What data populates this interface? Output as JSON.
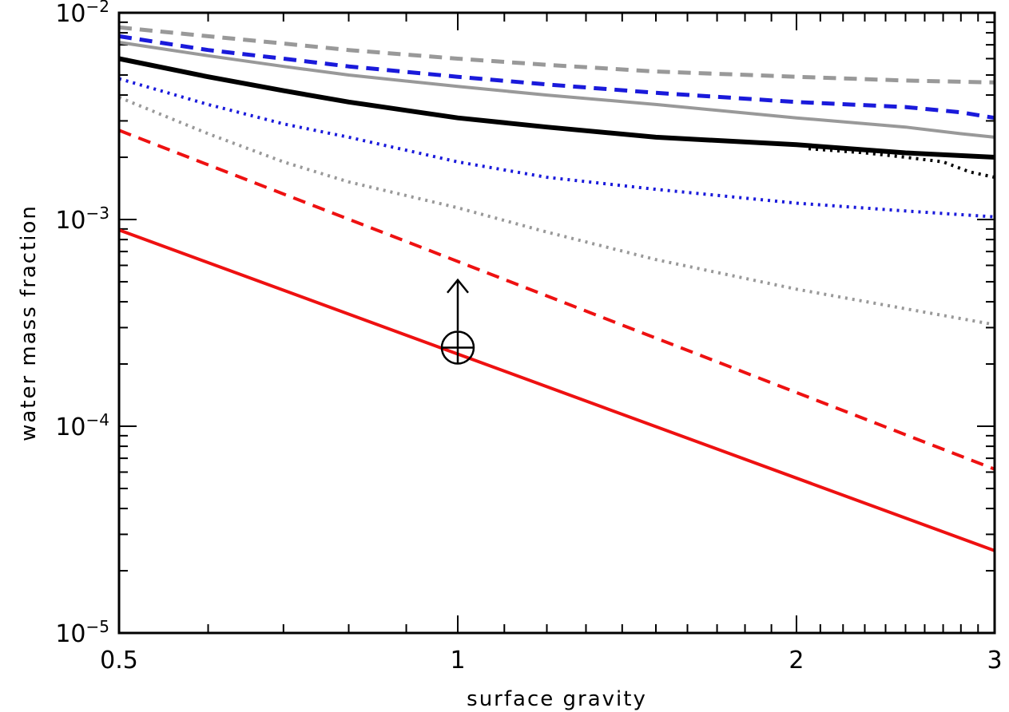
{
  "chart_data": {
    "type": "line",
    "xlabel": "surface gravity",
    "ylabel": "water mass fraction",
    "x_scale": "log",
    "y_scale": "log",
    "xlim": [
      0.5,
      3
    ],
    "ylim": [
      1e-05,
      0.01
    ],
    "x_major_ticks": [
      {
        "value": 0.5,
        "label": "0.5"
      },
      {
        "value": 1,
        "label": "1"
      },
      {
        "value": 2,
        "label": "2"
      },
      {
        "value": 3,
        "label": "3"
      }
    ],
    "x_minor_ticks": [
      0.6,
      0.7,
      0.8,
      0.9,
      1.1,
      1.2,
      1.3,
      1.4,
      1.5,
      1.6,
      1.7,
      1.8,
      1.9,
      2.1,
      2.2,
      2.3,
      2.4,
      2.5,
      2.6,
      2.7,
      2.8,
      2.9
    ],
    "y_major_ticks": [
      {
        "value": 1e-05,
        "base": "10",
        "exp": "−5"
      },
      {
        "value": 0.0001,
        "base": "10",
        "exp": "−4"
      },
      {
        "value": 0.001,
        "base": "10",
        "exp": "−3"
      },
      {
        "value": 0.01,
        "base": "10",
        "exp": "−2"
      }
    ],
    "grid": false,
    "legend": "none",
    "series": [
      {
        "color": "#999999",
        "style": "dashed",
        "width": 5,
        "x": [
          0.5,
          0.6,
          0.7,
          0.8,
          1.0,
          1.2,
          1.5,
          2.0,
          2.5,
          3.0
        ],
        "y": [
          0.0085,
          0.0077,
          0.0071,
          0.0066,
          0.006,
          0.0056,
          0.0052,
          0.0049,
          0.0047,
          0.0046
        ]
      },
      {
        "color": "#1a1adb",
        "style": "dashed",
        "width": 5,
        "x": [
          0.5,
          0.6,
          0.7,
          0.8,
          1.0,
          1.2,
          1.5,
          2.0,
          2.5,
          2.8,
          3.0
        ],
        "y": [
          0.0077,
          0.0066,
          0.006,
          0.0055,
          0.0049,
          0.0045,
          0.0041,
          0.0037,
          0.0035,
          0.0033,
          0.0031
        ]
      },
      {
        "color": "#999999",
        "style": "solid",
        "width": 4,
        "x": [
          0.5,
          0.6,
          0.7,
          0.8,
          1.0,
          1.2,
          1.5,
          2.0,
          2.5,
          2.8,
          3.0
        ],
        "y": [
          0.0072,
          0.0062,
          0.0055,
          0.005,
          0.0044,
          0.004,
          0.0036,
          0.0031,
          0.0028,
          0.0026,
          0.0025
        ]
      },
      {
        "color": "#000000",
        "style": "solid",
        "width": 6,
        "x": [
          0.5,
          0.6,
          0.7,
          0.8,
          1.0,
          1.2,
          1.5,
          2.0,
          2.5,
          3.0
        ],
        "y": [
          0.006,
          0.0049,
          0.0042,
          0.0037,
          0.0031,
          0.0028,
          0.0025,
          0.0023,
          0.0021,
          0.002
        ]
      },
      {
        "color": "#000000",
        "style": "dotted",
        "width": 4,
        "x": [
          2.05,
          2.3,
          2.5,
          2.7,
          2.85,
          3.0
        ],
        "y": [
          0.0022,
          0.0021,
          0.002,
          0.0019,
          0.0017,
          0.0016
        ]
      },
      {
        "color": "#1a1adb",
        "style": "dotted",
        "width": 4,
        "x": [
          0.5,
          0.6,
          0.7,
          0.8,
          1.0,
          1.2,
          1.5,
          2.0,
          2.5,
          3.0
        ],
        "y": [
          0.0048,
          0.0036,
          0.0029,
          0.0025,
          0.0019,
          0.0016,
          0.0014,
          0.0012,
          0.0011,
          0.00103
        ]
      },
      {
        "color": "#999999",
        "style": "dotted",
        "width": 4,
        "x": [
          0.5,
          0.6,
          0.7,
          0.8,
          1.0,
          1.2,
          1.5,
          2.0,
          2.5,
          3.0
        ],
        "y": [
          0.0039,
          0.0026,
          0.0019,
          0.00152,
          0.00114,
          0.00087,
          0.00064,
          0.00046,
          0.00037,
          0.00031
        ]
      },
      {
        "color": "#ee1111",
        "style": "dashed",
        "width": 4,
        "x": [
          0.5,
          3.0
        ],
        "y": [
          0.0027,
          6.2e-05
        ]
      },
      {
        "color": "#ee1111",
        "style": "solid",
        "width": 4,
        "x": [
          0.5,
          3.0
        ],
        "y": [
          0.00089,
          2.5e-05
        ]
      }
    ],
    "annotations": [
      {
        "type": "earth-symbol",
        "x": 1.0,
        "y": 0.00024
      },
      {
        "type": "up-arrow",
        "x": 1.0,
        "y_from": 0.00029,
        "y_to": 0.00051
      }
    ]
  }
}
